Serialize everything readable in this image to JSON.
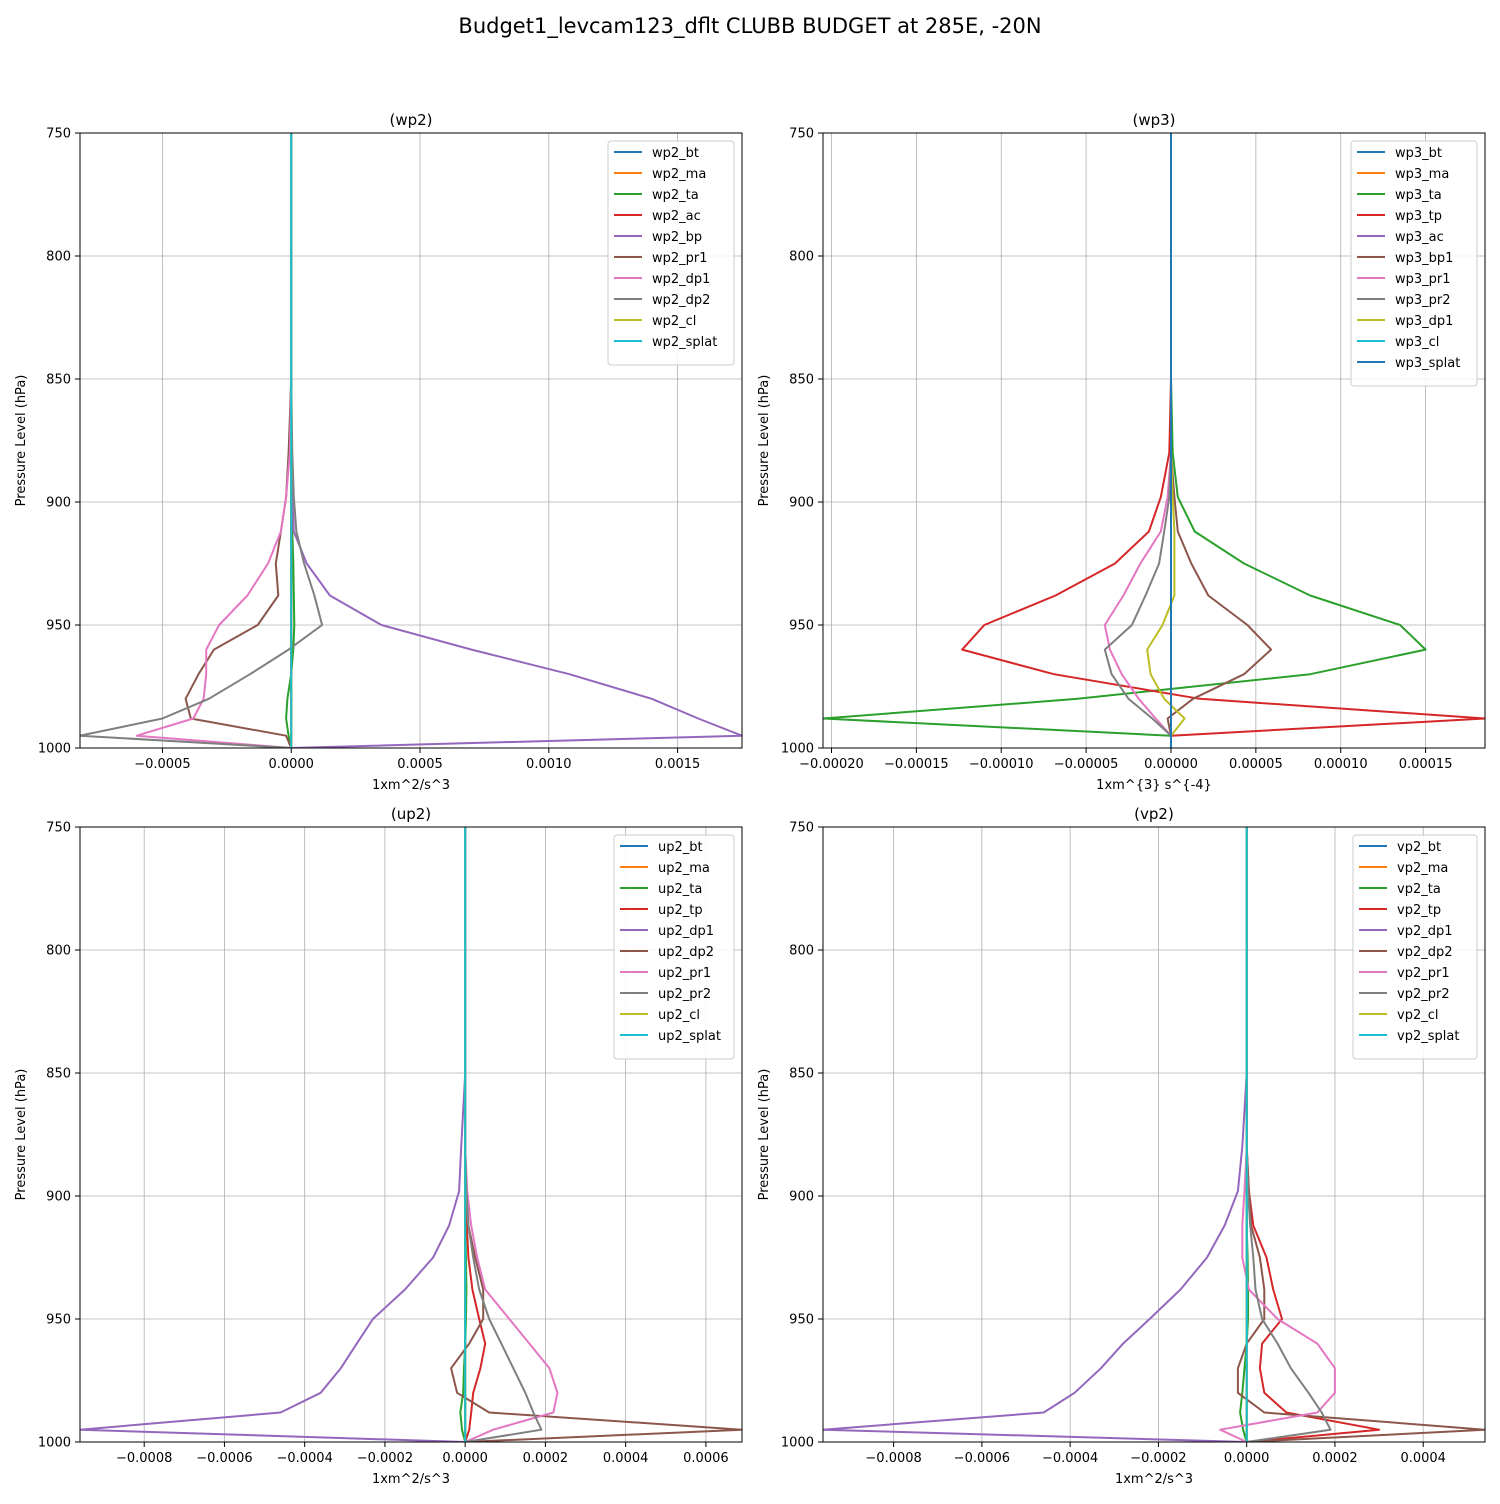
{
  "figure": {
    "title": "Budget1_levcam123_dflt CLUBB BUDGET at 285E, -20N"
  },
  "chart_data": [
    {
      "type": "line",
      "title": "(wp2)",
      "xlabel": "1xm^2/s^3",
      "ylabel": "Pressure Level (hPa)",
      "xlim": [
        -0.00082,
        0.00175
      ],
      "ylim": [
        1000,
        750
      ],
      "yticks": [
        750,
        800,
        850,
        900,
        950,
        1000
      ],
      "xticks": [
        -0.0005,
        0.0,
        0.0005,
        0.001,
        0.0015
      ],
      "xtick_labels": [
        "−0.0005",
        "0.0000",
        "0.0005",
        "0.0010",
        "0.0015"
      ],
      "grid": true,
      "legend_position": "top-right",
      "y": [
        750,
        850,
        880,
        898,
        912,
        925,
        938,
        950,
        960,
        970,
        980,
        988,
        995,
        1000
      ],
      "series": [
        {
          "name": "wp2_bt",
          "color": "#1f77b4",
          "values": [
            0,
            0,
            0,
            0,
            0,
            0,
            0,
            0,
            0,
            0,
            0,
            0,
            0,
            0
          ]
        },
        {
          "name": "wp2_ma",
          "color": "#ff7f0e",
          "values": [
            0,
            0,
            0,
            0,
            0,
            0,
            0,
            0,
            0,
            0,
            0,
            0,
            0,
            0
          ]
        },
        {
          "name": "wp2_ta",
          "color": "#2ca02c",
          "values": [
            0,
            0,
            0,
            2e-06,
            4e-06,
            8e-06,
            1e-05,
            1.2e-05,
            8e-06,
            0.0,
            -1.5e-05,
            -2e-05,
            -1e-05,
            0
          ]
        },
        {
          "name": "wp2_ac",
          "color": "#d62728",
          "values": [
            0,
            0,
            0,
            0,
            0,
            0,
            0,
            0,
            0,
            0,
            0,
            0,
            0,
            0
          ]
        },
        {
          "name": "wp2_bp",
          "color": "#9467bd",
          "values": [
            0,
            0,
            0,
            4e-06,
            1e-05,
            6e-05,
            0.00015,
            0.00035,
            0.0007,
            0.00108,
            0.0014,
            0.00158,
            0.00175,
            0
          ]
        },
        {
          "name": "wp2_pr1",
          "color": "#8c564b",
          "values": [
            0,
            0,
            -1e-05,
            -2e-05,
            -4e-05,
            -6e-05,
            -5e-05,
            -0.00013,
            -0.0003,
            -0.00036,
            -0.00041,
            -0.00039,
            -2e-05,
            0
          ]
        },
        {
          "name": "wp2_dp1",
          "color": "#e377c2",
          "values": [
            0,
            0,
            -5e-06,
            -2e-05,
            -4e-05,
            -9e-05,
            -0.00017,
            -0.00028,
            -0.00033,
            -0.00033,
            -0.00034,
            -0.00038,
            -0.0006,
            0
          ]
        },
        {
          "name": "wp2_dp2",
          "color": "#7f7f7f",
          "values": [
            0,
            0,
            4e-06,
            1e-05,
            2e-05,
            5e-05,
            9e-05,
            0.00012,
            -1e-05,
            -0.00016,
            -0.00032,
            -0.0005,
            -0.00082,
            0
          ]
        },
        {
          "name": "wp2_cl",
          "color": "#bcbd22",
          "values": [
            0,
            0,
            0,
            0,
            0,
            0,
            0,
            0,
            0,
            0,
            0,
            0,
            0,
            0
          ]
        },
        {
          "name": "wp2_splat",
          "color": "#17becf",
          "values": [
            0,
            0,
            0,
            0,
            0,
            0,
            0,
            0,
            0,
            0,
            0,
            0,
            0,
            0
          ]
        }
      ]
    },
    {
      "type": "line",
      "title": "(wp3)",
      "xlabel": "1xm^{3} s^{-4}",
      "ylabel": "Pressure Level (hPa)",
      "xlim": [
        -0.000205,
        0.000185
      ],
      "ylim": [
        1000,
        750
      ],
      "yticks": [
        750,
        800,
        850,
        900,
        950,
        1000
      ],
      "xticks": [
        -0.0002,
        -0.00015,
        -0.0001,
        -5e-05,
        0.0,
        5e-05,
        0.0001,
        0.00015
      ],
      "xtick_labels": [
        "−0.00020",
        "−0.00015",
        "−0.00010",
        "−0.00005",
        "0.00000",
        "0.00005",
        "0.00010",
        "0.00015"
      ],
      "grid": true,
      "legend_position": "top-right",
      "y": [
        750,
        850,
        880,
        898,
        912,
        925,
        938,
        950,
        960,
        970,
        980,
        988,
        995,
        1000
      ],
      "series": [
        {
          "name": "wp3_bt",
          "color": "#1f77b4",
          "values": [
            0,
            0,
            0,
            0,
            0,
            0,
            0,
            0,
            0,
            0,
            0,
            0,
            0,
            0
          ]
        },
        {
          "name": "wp3_ma",
          "color": "#ff7f0e",
          "values": [
            0,
            0,
            0,
            0,
            0,
            0,
            0,
            0,
            0,
            0,
            0,
            0,
            0,
            0
          ]
        },
        {
          "name": "wp3_ta",
          "color": "#2ca02c",
          "values": [
            0,
            0,
            1e-06,
            4e-06,
            1.4e-05,
            4.3e-05,
            8.2e-05,
            0.000135,
            0.00015,
            8.2e-05,
            -5.5e-05,
            -0.000205,
            0.0,
            0
          ]
        },
        {
          "name": "wp3_tp",
          "color": "#d62728",
          "values": [
            0,
            0,
            -1e-06,
            -6e-06,
            -1.3e-05,
            -3.3e-05,
            -6.8e-05,
            -0.00011,
            -0.000123,
            -6.9e-05,
            1.7e-05,
            0.000185,
            0.0,
            0
          ]
        },
        {
          "name": "wp3_ac",
          "color": "#9467bd",
          "values": [
            0,
            0,
            0,
            0,
            0,
            0,
            0,
            0,
            0,
            0,
            0,
            0,
            0,
            0
          ]
        },
        {
          "name": "wp3_bp1",
          "color": "#8c564b",
          "values": [
            0,
            0,
            0,
            2e-06,
            4e-06,
            1.2e-05,
            2.2e-05,
            4.5e-05,
            5.9e-05,
            4.3e-05,
            1.3e-05,
            -2e-06,
            0.0,
            0
          ]
        },
        {
          "name": "wp3_pr1",
          "color": "#e377c2",
          "values": [
            0,
            0,
            0,
            -2e-06,
            -6e-06,
            -1.8e-05,
            -2.8e-05,
            -3.9e-05,
            -3.6e-05,
            -2.9e-05,
            -1.9e-05,
            -9e-06,
            0.0,
            0
          ]
        },
        {
          "name": "wp3_pr2",
          "color": "#7f7f7f",
          "values": [
            0,
            0,
            0,
            -1e-06,
            -4e-06,
            -7e-06,
            -1.5e-05,
            -2.3e-05,
            -3.9e-05,
            -3.5e-05,
            -2.5e-05,
            -1.1e-05,
            0.0,
            0
          ]
        },
        {
          "name": "wp3_dp1",
          "color": "#bcbd22",
          "values": [
            0,
            0,
            0,
            1e-06,
            2e-06,
            2e-06,
            2e-06,
            -5e-06,
            -1.4e-05,
            -1.2e-05,
            -4e-06,
            8e-06,
            0.0,
            0
          ]
        },
        {
          "name": "wp3_cl",
          "color": "#17becf",
          "values": [
            0,
            0,
            0,
            0,
            0,
            0,
            0,
            0,
            0,
            0,
            0,
            0,
            0,
            0
          ]
        },
        {
          "name": "wp3_splat",
          "color": "#1f77b4",
          "values": [
            0,
            0,
            0,
            0,
            0,
            0,
            0,
            0,
            0,
            0,
            0,
            0,
            0,
            0
          ]
        }
      ]
    },
    {
      "type": "line",
      "title": "(up2)",
      "xlabel": "1xm^2/s^3",
      "ylabel": "Pressure Level (hPa)",
      "xlim": [
        -0.00096,
        0.00069
      ],
      "ylim": [
        1000,
        750
      ],
      "yticks": [
        750,
        800,
        850,
        900,
        950,
        1000
      ],
      "xticks": [
        -0.0008,
        -0.0006,
        -0.0004,
        -0.0002,
        0.0,
        0.0002,
        0.0004,
        0.0006
      ],
      "xtick_labels": [
        "−0.0008",
        "−0.0006",
        "−0.0004",
        "−0.0002",
        "0.0000",
        "0.0002",
        "0.0004",
        "0.0006"
      ],
      "grid": true,
      "legend_position": "top-right",
      "y": [
        750,
        850,
        880,
        898,
        912,
        925,
        938,
        950,
        960,
        970,
        980,
        988,
        995,
        1000
      ],
      "series": [
        {
          "name": "up2_bt",
          "color": "#1f77b4",
          "values": [
            0,
            0,
            0,
            0,
            0,
            0,
            0,
            0,
            0,
            0,
            0,
            0,
            0,
            0
          ]
        },
        {
          "name": "up2_ma",
          "color": "#ff7f0e",
          "values": [
            0,
            0,
            0,
            0,
            0,
            0,
            0,
            0,
            0,
            0,
            0,
            0,
            0,
            0
          ]
        },
        {
          "name": "up2_ta",
          "color": "#2ca02c",
          "values": [
            0,
            0,
            0,
            0,
            0,
            2e-06,
            3e-06,
            2e-06,
            0.0,
            -3e-06,
            -5e-06,
            -1.2e-05,
            -8e-06,
            0
          ]
        },
        {
          "name": "up2_tp",
          "color": "#d62728",
          "values": [
            0,
            0,
            0,
            2e-06,
            4e-06,
            8e-06,
            1.8e-05,
            3.5e-05,
            5e-05,
            3.8e-05,
            2e-05,
            1.5e-05,
            1e-05,
            0
          ]
        },
        {
          "name": "up2_dp1",
          "color": "#9467bd",
          "values": [
            0,
            0,
            -1e-05,
            -1.5e-05,
            -4e-05,
            -8e-05,
            -0.00015,
            -0.00023,
            -0.00027,
            -0.00031,
            -0.00036,
            -0.00046,
            -0.00096,
            0
          ]
        },
        {
          "name": "up2_dp2",
          "color": "#8c564b",
          "values": [
            0,
            0,
            0.0,
            3e-06,
            8e-06,
            2.5e-05,
            4.5e-05,
            4.5e-05,
            1e-05,
            -3.5e-05,
            -2e-05,
            6e-05,
            0.00069,
            0
          ]
        },
        {
          "name": "up2_pr1",
          "color": "#e377c2",
          "values": [
            0,
            0,
            0,
            5e-06,
            1.5e-05,
            3e-05,
            5e-05,
            0.00011,
            0.00016,
            0.00021,
            0.00023,
            0.00022,
            7e-05,
            0
          ]
        },
        {
          "name": "up2_pr2",
          "color": "#7f7f7f",
          "values": [
            0,
            0,
            0,
            3e-06,
            8e-06,
            2e-05,
            3.5e-05,
            6e-05,
            9e-05,
            0.00012,
            0.00015,
            0.00017,
            0.00019,
            0
          ]
        },
        {
          "name": "up2_cl",
          "color": "#bcbd22",
          "values": [
            0,
            0,
            0,
            0,
            0,
            0,
            0,
            0,
            0,
            0,
            0,
            0,
            0,
            0
          ]
        },
        {
          "name": "up2_splat",
          "color": "#17becf",
          "values": [
            0,
            0,
            0,
            0,
            0,
            0,
            0,
            0,
            0,
            0,
            0,
            0,
            0,
            0
          ]
        }
      ]
    },
    {
      "type": "line",
      "title": "(vp2)",
      "xlabel": "1xm^2/s^3",
      "ylabel": "Pressure Level (hPa)",
      "xlim": [
        -0.00096,
        0.00054
      ],
      "ylim": [
        1000,
        750
      ],
      "yticks": [
        750,
        800,
        850,
        900,
        950,
        1000
      ],
      "xticks": [
        -0.0008,
        -0.0006,
        -0.0004,
        -0.0002,
        0.0,
        0.0002,
        0.0004
      ],
      "xtick_labels": [
        "−0.0008",
        "−0.0006",
        "−0.0004",
        "−0.0002",
        "0.0000",
        "0.0002",
        "0.0004"
      ],
      "grid": true,
      "legend_position": "top-right",
      "y": [
        750,
        850,
        880,
        898,
        912,
        925,
        938,
        950,
        960,
        970,
        980,
        988,
        995,
        1000
      ],
      "series": [
        {
          "name": "vp2_bt",
          "color": "#1f77b4",
          "values": [
            0,
            0,
            0,
            0,
            0,
            0,
            0,
            0,
            0,
            0,
            0,
            0,
            0,
            0
          ]
        },
        {
          "name": "vp2_ma",
          "color": "#ff7f0e",
          "values": [
            0,
            0,
            0,
            0,
            0,
            0,
            0,
            0,
            0,
            0,
            0,
            0,
            0,
            0
          ]
        },
        {
          "name": "vp2_ta",
          "color": "#2ca02c",
          "values": [
            0,
            0,
            0,
            0,
            0,
            2e-06,
            3e-06,
            3e-06,
            0.0,
            -5e-06,
            -1e-05,
            -1.5e-05,
            -8e-06,
            0
          ]
        },
        {
          "name": "vp2_tp",
          "color": "#d62728",
          "values": [
            0,
            0,
            0,
            5e-06,
            1.5e-05,
            4.5e-05,
            6e-05,
            8e-05,
            3.5e-05,
            3e-05,
            4e-05,
            9e-05,
            0.0003,
            0
          ]
        },
        {
          "name": "vp2_dp1",
          "color": "#9467bd",
          "values": [
            0,
            0,
            -1e-05,
            -2e-05,
            -5e-05,
            -9e-05,
            -0.00015,
            -0.00022,
            -0.00028,
            -0.00033,
            -0.00039,
            -0.00046,
            -0.00096,
            0
          ]
        },
        {
          "name": "vp2_dp2",
          "color": "#8c564b",
          "values": [
            0,
            0,
            0,
            5e-06,
            1e-05,
            3e-05,
            4e-05,
            4e-05,
            0.0,
            -2e-05,
            -2e-05,
            4e-05,
            0.00054,
            0
          ]
        },
        {
          "name": "vp2_pr1",
          "color": "#e377c2",
          "values": [
            0,
            0,
            0,
            -5e-06,
            -1e-05,
            -1e-05,
            5e-06,
            7e-05,
            0.00016,
            0.0002,
            0.0002,
            0.00016,
            -6e-05,
            0
          ]
        },
        {
          "name": "vp2_pr2",
          "color": "#7f7f7f",
          "values": [
            0,
            0,
            0,
            3e-06,
            8e-06,
            1.5e-05,
            2e-05,
            3.5e-05,
            7e-05,
            0.0001,
            0.00014,
            0.00017,
            0.00019,
            0
          ]
        },
        {
          "name": "vp2_cl",
          "color": "#bcbd22",
          "values": [
            0,
            0,
            0,
            0,
            0,
            0,
            0,
            0,
            0,
            0,
            0,
            0,
            0,
            0
          ]
        },
        {
          "name": "vp2_splat",
          "color": "#17becf",
          "values": [
            0,
            0,
            0,
            0,
            0,
            0,
            0,
            0,
            0,
            0,
            0,
            0,
            0,
            0
          ]
        }
      ]
    }
  ]
}
